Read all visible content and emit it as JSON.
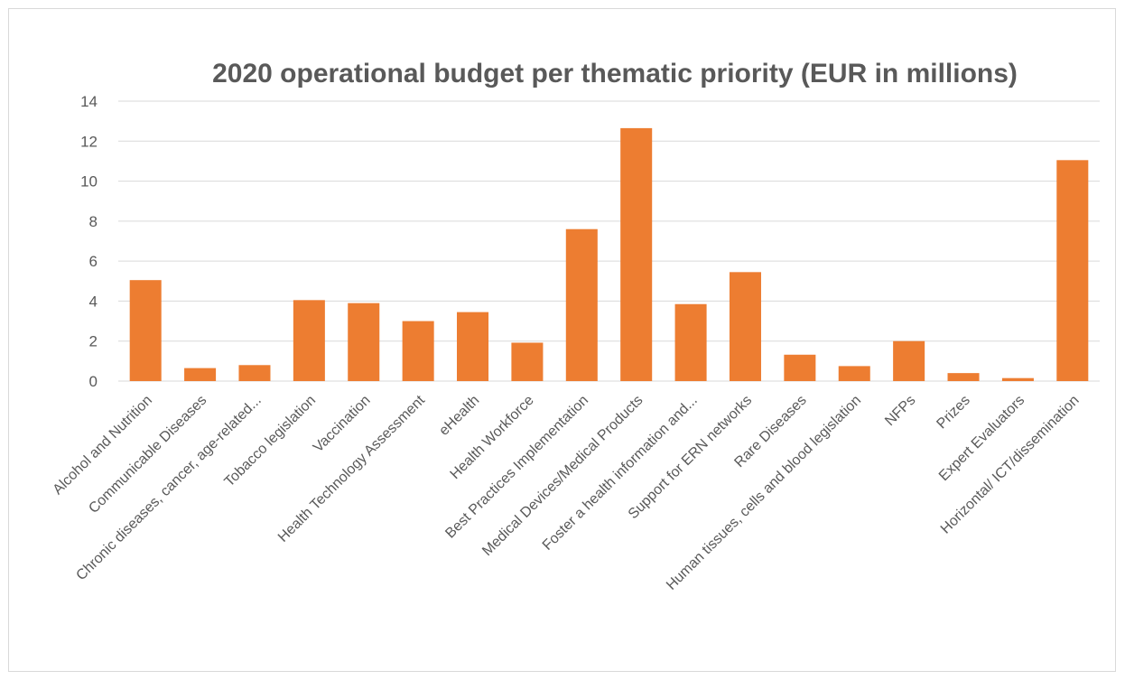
{
  "chart_data": {
    "type": "bar",
    "title": "2020 operational budget per thematic priority (EUR in millions)",
    "xlabel": "",
    "ylabel": "",
    "ylim": [
      0,
      14
    ],
    "yticks": [
      0,
      2,
      4,
      6,
      8,
      10,
      12,
      14
    ],
    "grid": true,
    "legend": "none",
    "bar_color": "#ED7D31",
    "categories": [
      "Alcohol and Nutrition",
      "Communicable Diseases",
      "Chronic diseases, cancer, age-related...",
      "Tobacco legislation",
      "Vaccination",
      "Health Technology Assessment",
      "eHealth",
      "Health Workforce",
      "Best Practices Implementation",
      "Medical Devices/Medical Products",
      "Foster a health information and...",
      "Support for ERN networks",
      "Rare Diseases",
      "Human tissues, cells and blood legislation",
      "NFPs",
      "Prizes",
      "Expert Evaluators",
      "Horizontal/ ICT/dissemination"
    ],
    "values": [
      5.05,
      0.65,
      0.8,
      4.05,
      3.9,
      3.0,
      3.45,
      1.92,
      7.6,
      12.65,
      3.85,
      5.45,
      1.32,
      0.75,
      2.0,
      0.4,
      0.15,
      11.05
    ]
  }
}
